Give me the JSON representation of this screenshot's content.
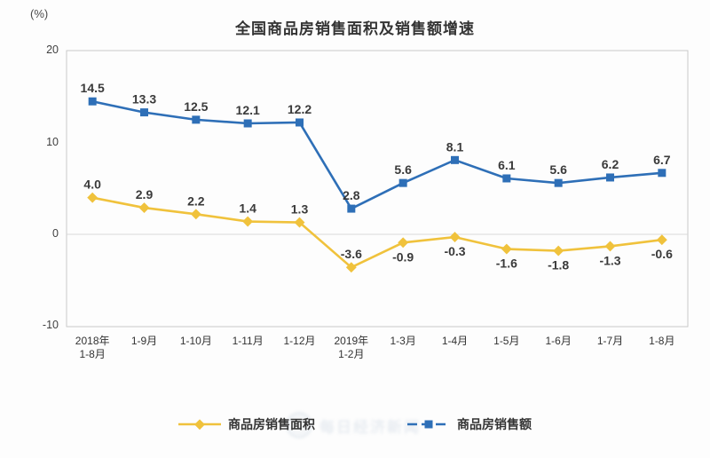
{
  "chart_data": {
    "type": "line",
    "title": "全国商品房销售面积及销售额增速",
    "unit": "(%)",
    "categories": [
      "2018年\n1-8月",
      "1-9月",
      "1-10月",
      "1-11月",
      "1-12月",
      "2019年\n1-2月",
      "1-3月",
      "1-4月",
      "1-5月",
      "1-6月",
      "1-7月",
      "1-8月"
    ],
    "y_axis": {
      "ticks": [
        20,
        10,
        0,
        -10
      ],
      "min": -10,
      "max": 20,
      "gridline_at": 0,
      "grid_color": "#d9d9d9",
      "frame_color": "#c9c9c9"
    },
    "series": [
      {
        "name": "商品房销售面积",
        "color": "#F0C23C",
        "marker": "diamond",
        "values": [
          4.0,
          2.9,
          2.2,
          1.4,
          1.3,
          -3.6,
          -0.9,
          -0.3,
          -1.6,
          -1.8,
          -1.3,
          -0.6
        ],
        "label_positions": [
          "above",
          "above",
          "above",
          "above",
          "above",
          "above",
          "below",
          "below",
          "below",
          "below",
          "below",
          "below"
        ]
      },
      {
        "name": "商品房销售额",
        "color": "#2E6FB7",
        "marker": "square",
        "values": [
          14.5,
          13.3,
          12.5,
          12.1,
          12.2,
          2.8,
          5.6,
          8.1,
          6.1,
          5.6,
          6.2,
          6.7
        ],
        "label_positions": [
          "above",
          "above",
          "above",
          "above",
          "above",
          "above",
          "above",
          "above",
          "above",
          "above",
          "above",
          "above"
        ]
      }
    ],
    "legend": [
      {
        "label": "商品房销售面积",
        "color": "#F0C23C",
        "marker": "diamond",
        "line_style": "solid"
      },
      {
        "label": "商品房销售额",
        "color": "#2E6FB7",
        "marker": "square",
        "line_style": "dashed"
      }
    ],
    "watermark": "每日经济新闻"
  }
}
